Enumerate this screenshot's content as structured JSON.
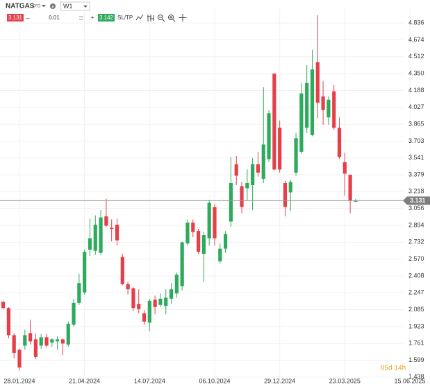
{
  "toolbar": {
    "symbol": "NATGAS",
    "kind": "CFD",
    "timeframe": "W1",
    "bid": "3.131",
    "volume": "0.01",
    "ask": "3.142",
    "sltp": "SL/TP",
    "minus": "–",
    "plus": "+"
  },
  "chart_data": {
    "type": "candlestick",
    "x": [
      "07.01.2024",
      "14.01.2024",
      "21.01.2024",
      "28.01.2024",
      "04.02.2024",
      "11.02.2024",
      "18.02.2024",
      "25.02.2024",
      "03.03.2024",
      "10.03.2024",
      "17.03.2024",
      "24.03.2024",
      "31.03.2024",
      "07.04.2024",
      "14.04.2024",
      "21.04.2024",
      "28.04.2024",
      "05.05.2024",
      "12.05.2024",
      "19.05.2024",
      "26.05.2024",
      "02.06.2024",
      "09.06.2024",
      "16.06.2024",
      "23.06.2024",
      "30.06.2024",
      "07.07.2024",
      "14.07.2024",
      "21.07.2024",
      "28.07.2024",
      "04.08.2024",
      "11.08.2024",
      "18.08.2024",
      "25.08.2024",
      "01.09.2024",
      "08.09.2024",
      "15.09.2024",
      "22.09.2024",
      "29.09.2024",
      "06.10.2024",
      "13.10.2024",
      "20.10.2024",
      "27.10.2024",
      "03.11.2024",
      "10.11.2024",
      "17.11.2024",
      "24.11.2024",
      "01.12.2024",
      "08.12.2024",
      "15.12.2024",
      "22.12.2024",
      "29.12.2024",
      "05.01.2025",
      "12.01.2025",
      "19.01.2025",
      "26.01.2025",
      "02.02.2025",
      "09.02.2025",
      "16.02.2025",
      "23.02.2025",
      "02.03.2025",
      "09.03.2025",
      "16.03.2025",
      "23.03.2025",
      "30.03.2025",
      "06.04.2025"
    ],
    "open": [
      2.16,
      2.1,
      1.84,
      1.7,
      1.74,
      1.86,
      1.8,
      1.74,
      1.82,
      1.77,
      1.78,
      1.8,
      1.75,
      1.94,
      2.15,
      2.25,
      2.66,
      2.65,
      2.63,
      2.98,
      2.87,
      2.9,
      2.59,
      2.33,
      2.29,
      2.14,
      2.05,
      1.96,
      2.18,
      2.13,
      2.12,
      2.19,
      2.24,
      2.31,
      2.72,
      2.92,
      2.84,
      2.62,
      2.77,
      3.07,
      2.55,
      2.67,
      2.93,
      3.48,
      3.27,
      3.25,
      3.28,
      3.48,
      3.34,
      3.53,
      4.35,
      3.83,
      3.3,
      3.21,
      3.4,
      3.6,
      3.83,
      3.76,
      4.46,
      4.13,
      3.93,
      4.18,
      3.83,
      3.5,
      3.38,
      3.12
    ],
    "high": [
      2.17,
      2.11,
      1.86,
      1.71,
      1.89,
      1.99,
      1.86,
      1.85,
      1.85,
      1.81,
      1.83,
      1.81,
      1.97,
      2.19,
      2.43,
      2.66,
      2.96,
      2.99,
      3.04,
      3.15,
      2.95,
      2.96,
      2.62,
      2.35,
      2.3,
      2.28,
      2.08,
      2.19,
      2.22,
      2.24,
      2.28,
      2.34,
      2.44,
      2.74,
      2.95,
      2.95,
      2.86,
      2.83,
      3.14,
      3.1,
      2.72,
      2.84,
      3.55,
      3.56,
      3.31,
      3.43,
      3.54,
      3.6,
      4.22,
      4.0,
      4.35,
      3.9,
      3.32,
      3.33,
      3.78,
      4.26,
      4.43,
      4.58,
      4.91,
      4.28,
      4.13,
      4.24,
      3.93,
      3.59,
      3.38,
      3.15
    ],
    "low": [
      2.09,
      1.81,
      1.62,
      1.5,
      1.7,
      1.75,
      1.61,
      1.71,
      1.72,
      1.73,
      1.7,
      1.65,
      1.73,
      1.92,
      2.13,
      2.23,
      2.6,
      2.61,
      2.61,
      2.88,
      2.74,
      2.7,
      2.32,
      2.23,
      2.07,
      2.05,
      1.94,
      1.88,
      2.04,
      2.11,
      2.04,
      2.14,
      2.2,
      2.27,
      2.7,
      2.78,
      2.62,
      2.35,
      2.7,
      2.7,
      2.53,
      2.63,
      2.88,
      3.28,
      3.01,
      3.13,
      3.04,
      3.36,
      3.3,
      3.5,
      3.42,
      3.4,
      2.98,
      3.03,
      3.37,
      3.58,
      3.78,
      3.75,
      3.92,
      3.86,
      3.86,
      3.81,
      3.53,
      3.18,
      3.01,
      3.12
    ],
    "close": [
      2.1,
      1.84,
      1.67,
      1.53,
      1.84,
      1.78,
      1.63,
      1.82,
      1.74,
      1.8,
      1.8,
      1.76,
      1.95,
      2.15,
      2.34,
      2.64,
      2.77,
      2.9,
      2.97,
      2.89,
      2.86,
      2.75,
      2.33,
      2.28,
      2.1,
      2.09,
      1.97,
      2.17,
      2.11,
      2.19,
      2.2,
      2.28,
      2.42,
      2.73,
      2.92,
      2.83,
      2.64,
      2.8,
      3.11,
      2.77,
      2.67,
      2.81,
      3.3,
      3.37,
      3.07,
      3.3,
      3.48,
      3.4,
      3.67,
      3.97,
      3.43,
      3.43,
      3.07,
      3.31,
      3.73,
      4.16,
      4.26,
      4.39,
      4.07,
      4.0,
      4.1,
      3.83,
      3.55,
      3.39,
      3.13,
      3.13
    ],
    "up_color": "#2eaa5c",
    "down_color": "#e5404a",
    "ylim": [
      1.41,
      4.99
    ],
    "yticks": [
      4.836,
      4.674,
      4.512,
      {
        "value": 4.35,
        "label": "4.350"
      },
      4.188,
      4.027,
      3.865,
      3.703,
      3.541,
      3.379,
      3.218,
      3.056,
      2.894,
      2.732,
      {
        "value": 2.57,
        "label": "2.570"
      },
      2.408,
      2.247,
      2.085,
      1.923,
      1.761,
      1.599,
      1.438
    ],
    "xticks": [
      "28.01.2024",
      "21.04.2024",
      "14.07.2024",
      "06.10.2024",
      "29.12.2024",
      "23.03.2025",
      "15.06.2025"
    ],
    "last_price": 3.131,
    "countdown": "05d 14h",
    "grid": true
  }
}
